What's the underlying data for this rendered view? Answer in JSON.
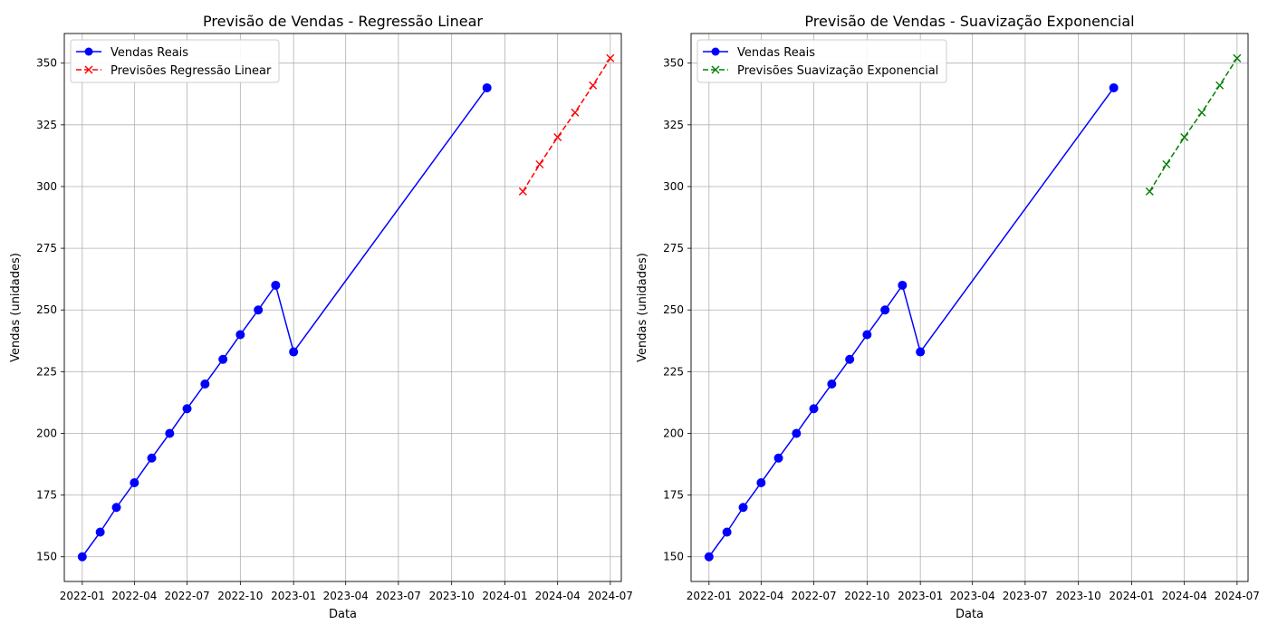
{
  "chart_data": [
    {
      "type": "line",
      "title": "Previsão de Vendas - Regressão Linear",
      "xlabel": "Data",
      "ylabel": "Vendas (unidades)",
      "ylim": [
        140,
        362
      ],
      "xlim": [
        "2021-12-01",
        "2024-07-20"
      ],
      "yticks": [
        150,
        175,
        200,
        225,
        250,
        275,
        300,
        325,
        350
      ],
      "xticks": [
        "2022-01",
        "2022-04",
        "2022-07",
        "2022-10",
        "2023-01",
        "2023-04",
        "2023-07",
        "2023-10",
        "2024-01",
        "2024-04",
        "2024-07"
      ],
      "grid": true,
      "legend": "top-left",
      "series": [
        {
          "name": "Vendas Reais",
          "color": "#0000ff",
          "style": "solid",
          "marker": "circle",
          "x": [
            "2022-01-01",
            "2022-02-01",
            "2022-03-01",
            "2022-04-01",
            "2022-05-01",
            "2022-06-01",
            "2022-07-01",
            "2022-08-01",
            "2022-09-01",
            "2022-10-01",
            "2022-11-01",
            "2022-12-01",
            "2023-01-01",
            "2023-12-01"
          ],
          "values": [
            150,
            160,
            170,
            180,
            190,
            200,
            210,
            220,
            230,
            240,
            250,
            260,
            233,
            340
          ]
        },
        {
          "name": "Previsões Regressão Linear",
          "color": "#ff0000",
          "style": "dashed",
          "marker": "x",
          "x": [
            "2024-02-01",
            "2024-03-01",
            "2024-04-01",
            "2024-05-01",
            "2024-06-01",
            "2024-07-01"
          ],
          "values": [
            298,
            309,
            320,
            330,
            341,
            352
          ]
        }
      ]
    },
    {
      "type": "line",
      "title": "Previsão de Vendas - Suavização Exponencial",
      "xlabel": "Data",
      "ylabel": "Vendas (unidades)",
      "ylim": [
        140,
        362
      ],
      "xlim": [
        "2021-12-01",
        "2024-07-20"
      ],
      "yticks": [
        150,
        175,
        200,
        225,
        250,
        275,
        300,
        325,
        350
      ],
      "xticks": [
        "2022-01",
        "2022-04",
        "2022-07",
        "2022-10",
        "2023-01",
        "2023-04",
        "2023-07",
        "2023-10",
        "2024-01",
        "2024-04",
        "2024-07"
      ],
      "grid": true,
      "legend": "top-left",
      "series": [
        {
          "name": "Vendas Reais",
          "color": "#0000ff",
          "style": "solid",
          "marker": "circle",
          "x": [
            "2022-01-01",
            "2022-02-01",
            "2022-03-01",
            "2022-04-01",
            "2022-05-01",
            "2022-06-01",
            "2022-07-01",
            "2022-08-01",
            "2022-09-01",
            "2022-10-01",
            "2022-11-01",
            "2022-12-01",
            "2023-01-01",
            "2023-12-01"
          ],
          "values": [
            150,
            160,
            170,
            180,
            190,
            200,
            210,
            220,
            230,
            240,
            250,
            260,
            233,
            340
          ]
        },
        {
          "name": "Previsões Suavização Exponencial",
          "color": "#008000",
          "style": "dashed",
          "marker": "x",
          "x": [
            "2024-02-01",
            "2024-03-01",
            "2024-04-01",
            "2024-05-01",
            "2024-06-01",
            "2024-07-01"
          ],
          "values": [
            298,
            309,
            320,
            330,
            341,
            352
          ]
        }
      ]
    }
  ]
}
